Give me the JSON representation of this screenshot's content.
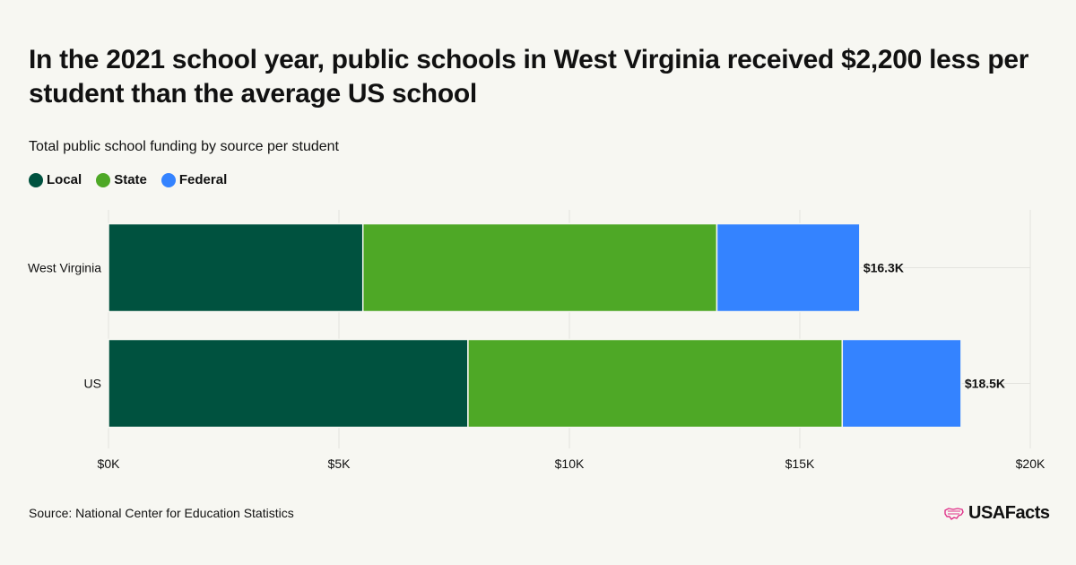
{
  "title": "In the 2021 school year, public schools in West Virginia received $2,200 less per student than the average US school",
  "subtitle": "Total public school funding by source per student",
  "source": "Source: National Center for Education Statistics",
  "logo": {
    "text": "USAFacts",
    "icon": "usa-map-icon",
    "color": "#e0338a"
  },
  "colors": {
    "background": "#f7f7f2",
    "grid": "#e3e3de"
  },
  "chart_data": {
    "type": "bar",
    "orientation": "horizontal",
    "stacked": true,
    "categories": [
      "West Virginia",
      "US"
    ],
    "series": [
      {
        "name": "Local",
        "color": "#00523f",
        "values": [
          5520,
          7800
        ]
      },
      {
        "name": "State",
        "color": "#4ea826",
        "values": [
          7680,
          8120
        ]
      },
      {
        "name": "Federal",
        "color": "#3483ff",
        "values": [
          3100,
          2580
        ]
      }
    ],
    "totals_labels": [
      "$16.3K",
      "$18.5K"
    ],
    "totals": [
      16300,
      18500
    ],
    "xlim": [
      0,
      20000
    ],
    "xticks": [
      0,
      5000,
      10000,
      15000,
      20000
    ],
    "xtick_labels": [
      "$0K",
      "$5K",
      "$10K",
      "$15K",
      "$20K"
    ],
    "grid": true,
    "legend_position": "top-left"
  }
}
